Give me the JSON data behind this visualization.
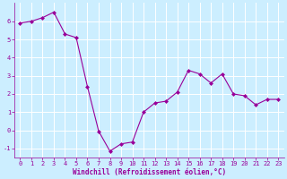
{
  "x": [
    0,
    1,
    2,
    3,
    4,
    5,
    6,
    7,
    8,
    9,
    10,
    11,
    12,
    13,
    14,
    15,
    16,
    17,
    18,
    19,
    20,
    21,
    22,
    23
  ],
  "y": [
    5.9,
    6.0,
    6.2,
    6.5,
    5.3,
    5.1,
    2.4,
    -0.05,
    -1.15,
    -0.75,
    -0.65,
    1.0,
    1.5,
    1.6,
    2.1,
    3.3,
    3.1,
    2.6,
    3.1,
    2.0,
    1.9,
    1.4,
    1.7,
    1.7
  ],
  "line_color": "#990099",
  "marker": "D",
  "marker_size": 2.0,
  "bg_color": "#cceeff",
  "grid_color": "#aaddcc",
  "xlabel": "Windchill (Refroidissement éolien,°C)",
  "xlabel_color": "#990099",
  "tick_color": "#990099",
  "xlim": [
    -0.5,
    23.5
  ],
  "ylim": [
    -1.5,
    7.0
  ],
  "yticks": [
    -1,
    0,
    1,
    2,
    3,
    4,
    5,
    6
  ],
  "xticks": [
    0,
    1,
    2,
    3,
    4,
    5,
    6,
    7,
    8,
    9,
    10,
    11,
    12,
    13,
    14,
    15,
    16,
    17,
    18,
    19,
    20,
    21,
    22,
    23
  ],
  "tick_fontsize": 5.0,
  "xlabel_fontsize": 5.5
}
